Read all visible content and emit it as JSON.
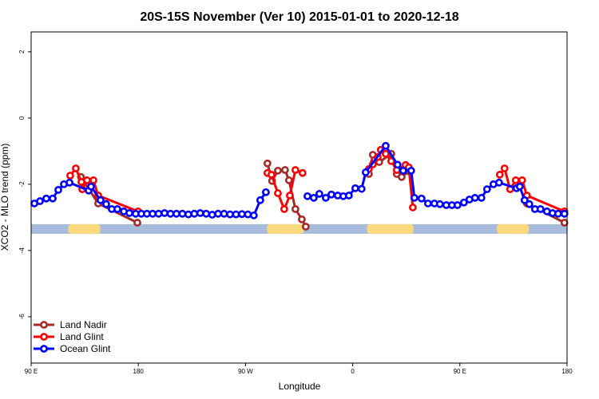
{
  "chart_data": {
    "type": "line",
    "title": "20S-15S November (Ver 10)   2015-01-01 to 2020-12-18",
    "xlabel": "Longitude",
    "ylabel": "XCO2 - MLO trend (ppm)",
    "xlim": [
      90,
      540
    ],
    "ylim": [
      -7.4,
      2.6
    ],
    "x_ticks": [
      90,
      180,
      270,
      360,
      450,
      540
    ],
    "x_tick_labels": [
      "90 E",
      "180",
      "90 W",
      "0",
      "90 E",
      "180"
    ],
    "y_ticks": [
      2,
      0,
      -2,
      -4,
      -6
    ],
    "y_tick_labels": [
      "2",
      "0",
      "-2",
      "-4",
      "-6"
    ],
    "legend_position": "bottom-left",
    "band_value": -3.35,
    "land_ranges": [
      [
        121,
        148
      ],
      [
        288,
        319
      ],
      [
        372,
        411
      ],
      [
        481,
        508
      ]
    ],
    "colors": {
      "band_ocean": "#a7bcdd",
      "band_land": "#fcd97c"
    },
    "series": [
      {
        "name": "Land Nadir",
        "color": "#a52a2a",
        "segments": [
          [
            [
              131.8,
              -1.78
            ],
            [
              146.3,
              -2.58
            ],
            [
              179.2,
              -3.16
            ]
          ],
          [
            [
              288.4,
              -1.37
            ],
            [
              292.3,
              -1.9
            ],
            [
              297.2,
              -1.59
            ],
            [
              303.2,
              -1.57
            ],
            [
              306.5,
              -1.88
            ],
            [
              311.9,
              -2.75
            ],
            [
              317.3,
              -3.06
            ],
            [
              320.6,
              -3.28
            ]
          ],
          [
            [
              373.6,
              -1.69
            ],
            [
              376.9,
              -1.11
            ],
            [
              382.3,
              -1.33
            ],
            [
              392.4,
              -1.08
            ],
            [
              397,
              -1.69
            ],
            [
              401.1,
              -1.78
            ],
            [
              407.1,
              -1.61
            ]
          ],
          [
            [
              506.3,
              -2.58
            ],
            [
              537.8,
              -3.16
            ]
          ]
        ]
      },
      {
        "name": "Land Glint",
        "color": "#ff0000",
        "segments": [
          [
            [
              122.8,
              -1.74
            ],
            [
              127.5,
              -1.52
            ],
            [
              132.2,
              -1.93
            ],
            [
              132.9,
              -2.15
            ],
            [
              136.9,
              -1.88
            ],
            [
              142.3,
              -1.88
            ],
            [
              146.3,
              -2.34
            ],
            [
              179.8,
              -2.82
            ]
          ],
          [
            [
              288.4,
              -1.66
            ],
            [
              291.8,
              -1.71
            ],
            [
              297.2,
              -2.27
            ],
            [
              302.5,
              -2.75
            ],
            [
              307.2,
              -2.34
            ],
            [
              311.9,
              -1.57
            ],
            [
              317.9,
              -1.66
            ]
          ],
          [
            [
              373.6,
              -1.54
            ],
            [
              376.9,
              -1.4
            ],
            [
              381,
              -1.18
            ],
            [
              383.6,
              -0.96
            ],
            [
              387.7,
              -1.08
            ],
            [
              392.4,
              -1.3
            ],
            [
              397,
              -1.57
            ],
            [
              404.4,
              -1.42
            ],
            [
              407.1,
              -1.49
            ],
            [
              410.5,
              -2.7
            ]
          ],
          [
            [
              483.5,
              -1.71
            ],
            [
              487.5,
              -1.52
            ],
            [
              492.2,
              -2.15
            ],
            [
              496.9,
              -1.88
            ],
            [
              502.3,
              -1.88
            ],
            [
              506.3,
              -2.34
            ],
            [
              537.8,
              -2.82
            ]
          ]
        ]
      },
      {
        "name": "Ocean Glint",
        "color": "#0000ff",
        "segments": [
          [
            [
              92.7,
              -2.58
            ],
            [
              97.4,
              -2.51
            ],
            [
              102.7,
              -2.43
            ],
            [
              108.1,
              -2.43
            ],
            [
              112.8,
              -2.17
            ],
            [
              117.5,
              -2.0
            ],
            [
              122.2,
              -1.95
            ],
            [
              138.3,
              -2.19
            ],
            [
              140.3,
              -2.07
            ],
            [
              148.3,
              -2.48
            ],
            [
              153,
              -2.6
            ],
            [
              157.7,
              -2.75
            ],
            [
              162.4,
              -2.75
            ],
            [
              167.8,
              -2.82
            ],
            [
              172.5,
              -2.87
            ],
            [
              177.8,
              -2.89
            ],
            [
              182.5,
              -2.89
            ],
            [
              187.2,
              -2.89
            ],
            [
              192,
              -2.89
            ],
            [
              197,
              -2.89
            ],
            [
              202,
              -2.87
            ],
            [
              207,
              -2.89
            ],
            [
              212,
              -2.89
            ],
            [
              217,
              -2.89
            ],
            [
              222,
              -2.91
            ],
            [
              227,
              -2.89
            ],
            [
              232,
              -2.87
            ],
            [
              237,
              -2.89
            ],
            [
              242,
              -2.92
            ],
            [
              247,
              -2.89
            ],
            [
              252,
              -2.89
            ],
            [
              257,
              -2.91
            ],
            [
              262,
              -2.91
            ],
            [
              267,
              -2.9
            ],
            [
              272,
              -2.91
            ],
            [
              277,
              -2.94
            ],
            [
              282.4,
              -2.48
            ],
            [
              287.1,
              -2.24
            ]
          ],
          [
            [
              322,
              -2.36
            ],
            [
              327.3,
              -2.41
            ],
            [
              332,
              -2.29
            ],
            [
              337.4,
              -2.41
            ],
            [
              342.1,
              -2.31
            ],
            [
              347.4,
              -2.34
            ],
            [
              352.1,
              -2.36
            ],
            [
              356.8,
              -2.34
            ],
            [
              362.2,
              -2.12
            ],
            [
              367.5,
              -2.14
            ],
            [
              370.9,
              -1.64
            ],
            [
              387.7,
              -0.84
            ],
            [
              397.7,
              -1.41
            ],
            [
              402.4,
              -1.59
            ],
            [
              409.1,
              -1.59
            ],
            [
              411.8,
              -2.41
            ],
            [
              417.8,
              -2.43
            ],
            [
              423.2,
              -2.58
            ],
            [
              428.6,
              -2.58
            ],
            [
              433.2,
              -2.6
            ],
            [
              438.6,
              -2.63
            ],
            [
              443.3,
              -2.63
            ],
            [
              448,
              -2.63
            ],
            [
              453.4,
              -2.55
            ],
            [
              458,
              -2.46
            ],
            [
              462.7,
              -2.41
            ],
            [
              468.1,
              -2.41
            ],
            [
              472.8,
              -2.15
            ],
            [
              478.2,
              -2.0
            ],
            [
              482.9,
              -1.95
            ],
            [
              497.6,
              -2.12
            ],
            [
              500.3,
              -2.07
            ],
            [
              504.3,
              -2.48
            ],
            [
              508.3,
              -2.6
            ],
            [
              513,
              -2.75
            ],
            [
              517.7,
              -2.75
            ],
            [
              523.1,
              -2.82
            ],
            [
              527.8,
              -2.87
            ],
            [
              532.5,
              -2.89
            ],
            [
              537.8,
              -2.89
            ]
          ]
        ]
      }
    ]
  }
}
